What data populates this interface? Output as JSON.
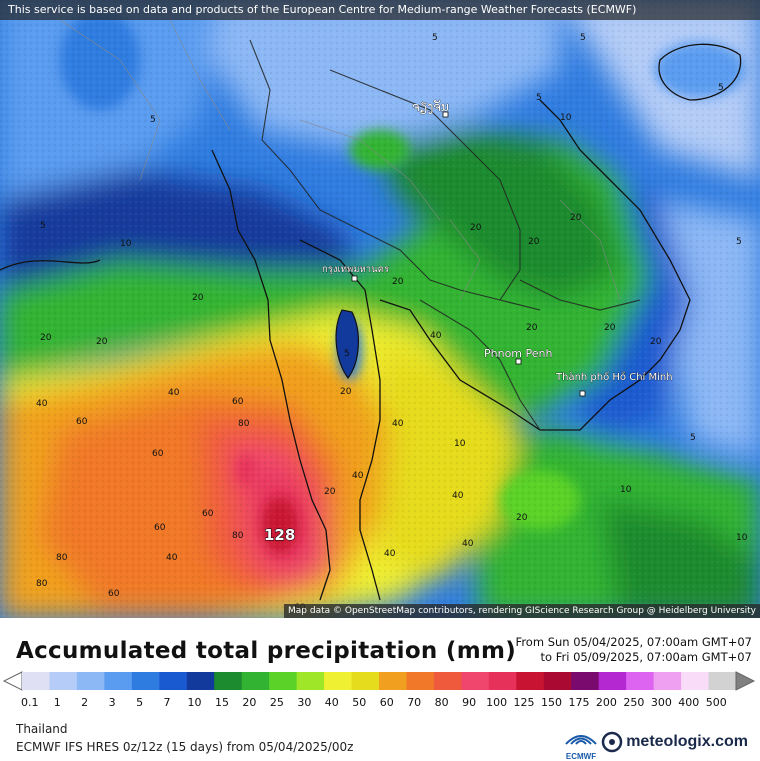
{
  "banner": "This service is based on data and products of the European Centre for Medium-range Weather Forecasts (ECMWF)",
  "attribution": "Map data © OpenStreetMap contributors, rendering GIScience Research Group @ Heidelberg University",
  "title": "Accumulated total precipitation (mm)",
  "period": {
    "from": "From Sun 05/04/2025, 07:00am GMT+07",
    "to": "to Fri 05/09/2025, 07:00am GMT+07"
  },
  "region": "Thailand",
  "model": "ECMWF IFS HRES 0z/12z (15 days) from 05/04/2025/00z",
  "brand": "meteologix.com",
  "ecmwf_logo": "ECMWF",
  "max_label": "128",
  "cities": [
    {
      "name": "ຈຽງຈັນ"
    },
    {
      "name": "กรุงเทพมหานคร"
    },
    {
      "name": "Phnom Penh"
    },
    {
      "name": "Thành phố Hồ Chí Minh"
    }
  ],
  "legend": {
    "values": [
      "0.1",
      "1",
      "2",
      "3",
      "5",
      "7",
      "10",
      "15",
      "20",
      "25",
      "30",
      "40",
      "50",
      "60",
      "70",
      "80",
      "90",
      "100",
      "125",
      "150",
      "175",
      "200",
      "250",
      "300",
      "400",
      "500"
    ],
    "colors": [
      "#e0e0f4",
      "#b4ccf7",
      "#8cb8f5",
      "#5a9cf0",
      "#2f7ce0",
      "#1a5ad0",
      "#123a9c",
      "#1c8a2e",
      "#32b432",
      "#5ad228",
      "#a0e628",
      "#f0f032",
      "#e6dc1e",
      "#f0a01e",
      "#f07828",
      "#f05a3c",
      "#f0466e",
      "#e6325a",
      "#c81432",
      "#aa0a32",
      "#7a0a6e",
      "#b428d2",
      "#dc64f0",
      "#f0a0f0",
      "#f8dcf8",
      "#d2d2d2"
    ]
  },
  "contour_labels": [
    "5",
    "10",
    "20",
    "40",
    "60",
    "80"
  ]
}
